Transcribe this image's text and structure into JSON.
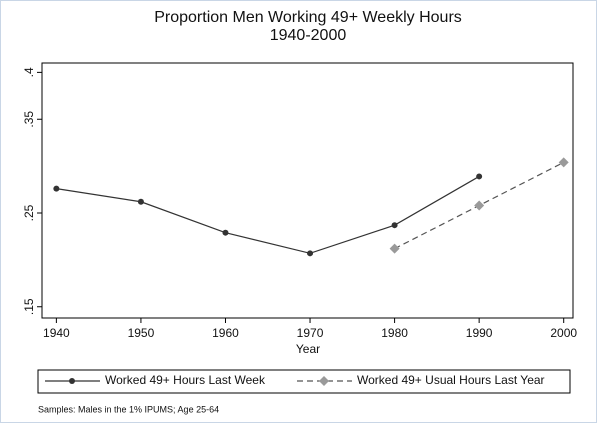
{
  "chart_data": {
    "type": "line",
    "title": "Proportion Men Working 49+ Weekly Hours",
    "subtitle": "1940-2000",
    "x_label": "Year",
    "note": "Samples: Males in the 1% IPUMS; Age 25-64",
    "x": [
      1940,
      1950,
      1960,
      1970,
      1980,
      1990,
      2000
    ],
    "series": [
      {
        "name": "Worked 49+ Hours Last Week",
        "color": "#333333",
        "marker": "circle",
        "dashed": false,
        "values": [
          0.276,
          0.262,
          0.229,
          0.207,
          0.237,
          0.289,
          null
        ]
      },
      {
        "name": "Worked 49+ Usual Hours Last Year",
        "color": "#555555",
        "marker_color": "#9a9a9a",
        "marker": "diamond",
        "dashed": true,
        "values": [
          null,
          null,
          null,
          null,
          0.212,
          0.258,
          0.304
        ]
      }
    ],
    "xlim": [
      1938.3,
      2001.1
    ],
    "xticks": [
      1940,
      1950,
      1960,
      1970,
      1980,
      1990,
      2000
    ],
    "ylim": [
      0.138,
      0.41
    ],
    "yticks": [
      {
        "value": 0.15,
        "label": ".15"
      },
      {
        "value": 0.25,
        "label": ".25"
      },
      {
        "value": 0.35,
        "label": ".35"
      },
      {
        "value": 0.4,
        "label": ".4"
      }
    ],
    "grid": false,
    "legend": "bottom"
  }
}
